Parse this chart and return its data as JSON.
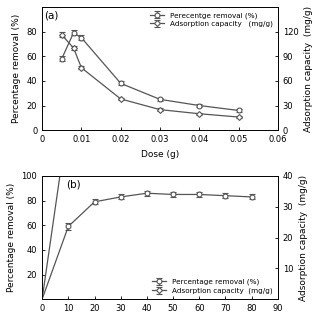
{
  "panel_a": {
    "label": "(a)",
    "dose_x": [
      0.005,
      0.008,
      0.01,
      0.02,
      0.03,
      0.04,
      0.05
    ],
    "removal_y": [
      58,
      79,
      75,
      38,
      25,
      20,
      16
    ],
    "removal_err": [
      2,
      2,
      2,
      1.5,
      1.5,
      1.5,
      1.0
    ],
    "adsorption_y": [
      116,
      100,
      76,
      38,
      25,
      20,
      16
    ],
    "adsorption_err": [
      3,
      3,
      2,
      1.5,
      1.5,
      1.5,
      1.0
    ],
    "xlabel": "Dose (g)",
    "ylabel_left": "Percentage removal (%)",
    "ylabel_right": "Adsorption capacity  (mg/g)",
    "xlim": [
      0,
      0.06
    ],
    "xticks": [
      0,
      0.01,
      0.02,
      0.03,
      0.04,
      0.05,
      0.06
    ],
    "ylim_left": [
      0,
      100
    ],
    "yticks_left": [
      0,
      20,
      40,
      60,
      80
    ],
    "ylim_right": [
      0,
      150
    ],
    "yticks_right": [
      0,
      30,
      60,
      90,
      120
    ]
  },
  "panel_b": {
    "label": "(b)",
    "dose_x": [
      5,
      10,
      20,
      30,
      40,
      50,
      60,
      70,
      80
    ],
    "removal_y": [
      0,
      59,
      79,
      83,
      86,
      85,
      85,
      84,
      83
    ],
    "removal_err": [
      0,
      3,
      2,
      2,
      2,
      2,
      2,
      2,
      2
    ],
    "adsorption_y": [
      0,
      59,
      79,
      83,
      86,
      85,
      85,
      84,
      83
    ],
    "adsorption_err": [
      0,
      3,
      2,
      2,
      2,
      2,
      2,
      2,
      2
    ],
    "xlabel": "",
    "ylabel_left": "Percentage removal (%)",
    "ylabel_right": "Adsorption capacity  (mg/g)",
    "xlim": [
      0,
      90
    ],
    "xticks": [
      0,
      10,
      20,
      30,
      40,
      50,
      60,
      70,
      80,
      90
    ],
    "ylim_left": [
      0,
      100
    ],
    "yticks_left": [
      20,
      40,
      60,
      80,
      100
    ],
    "ylim_right": [
      0,
      40
    ],
    "yticks_right": [
      10,
      20,
      30,
      40
    ]
  },
  "line_color": "#555555",
  "legend_a": [
    "Perecentge removal (%)",
    "Adsorption capacity   (mg/g)"
  ],
  "legend_b": [
    "Percentage removal (%)",
    "Adsorption capacity  (mg/g)"
  ],
  "fontsize": 6.5,
  "tick_fontsize": 6.0,
  "label_fontsize": 7.5
}
